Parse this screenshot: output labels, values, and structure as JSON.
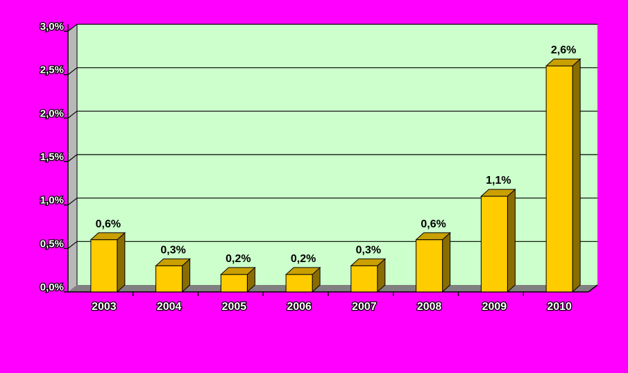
{
  "chart_data": {
    "type": "bar",
    "categories": [
      "2003",
      "2004",
      "2005",
      "2006",
      "2007",
      "2008",
      "2009",
      "2010"
    ],
    "values": [
      0.6,
      0.3,
      0.2,
      0.2,
      0.3,
      0.6,
      1.1,
      2.6
    ],
    "value_labels": [
      "0,6%",
      "0,3%",
      "0,2%",
      "0,2%",
      "0,3%",
      "0,6%",
      "1,1%",
      "2,6%"
    ],
    "y_ticks": [
      {
        "value": 0.0,
        "label": "0,0%"
      },
      {
        "value": 0.5,
        "label": "0,5%"
      },
      {
        "value": 1.0,
        "label": "1,0%"
      },
      {
        "value": 1.5,
        "label": "1,5%"
      },
      {
        "value": 2.0,
        "label": "2,0%"
      },
      {
        "value": 2.5,
        "label": "2,5%"
      },
      {
        "value": 3.0,
        "label": "3,0%"
      }
    ],
    "ylim": [
      0,
      3.0
    ],
    "title": "",
    "xlabel": "",
    "ylabel": "",
    "grid": true,
    "legend": "none",
    "three_d": true,
    "colors": {
      "page_background": "#ff00ff",
      "plot_background": "#ccffcc",
      "wall_side": "#b8b8b8",
      "floor": "#808080",
      "bar_front": "#ffcc00",
      "bar_side": "#8a6d00",
      "bar_top": "#c9a000",
      "gridline": "#000000"
    }
  }
}
